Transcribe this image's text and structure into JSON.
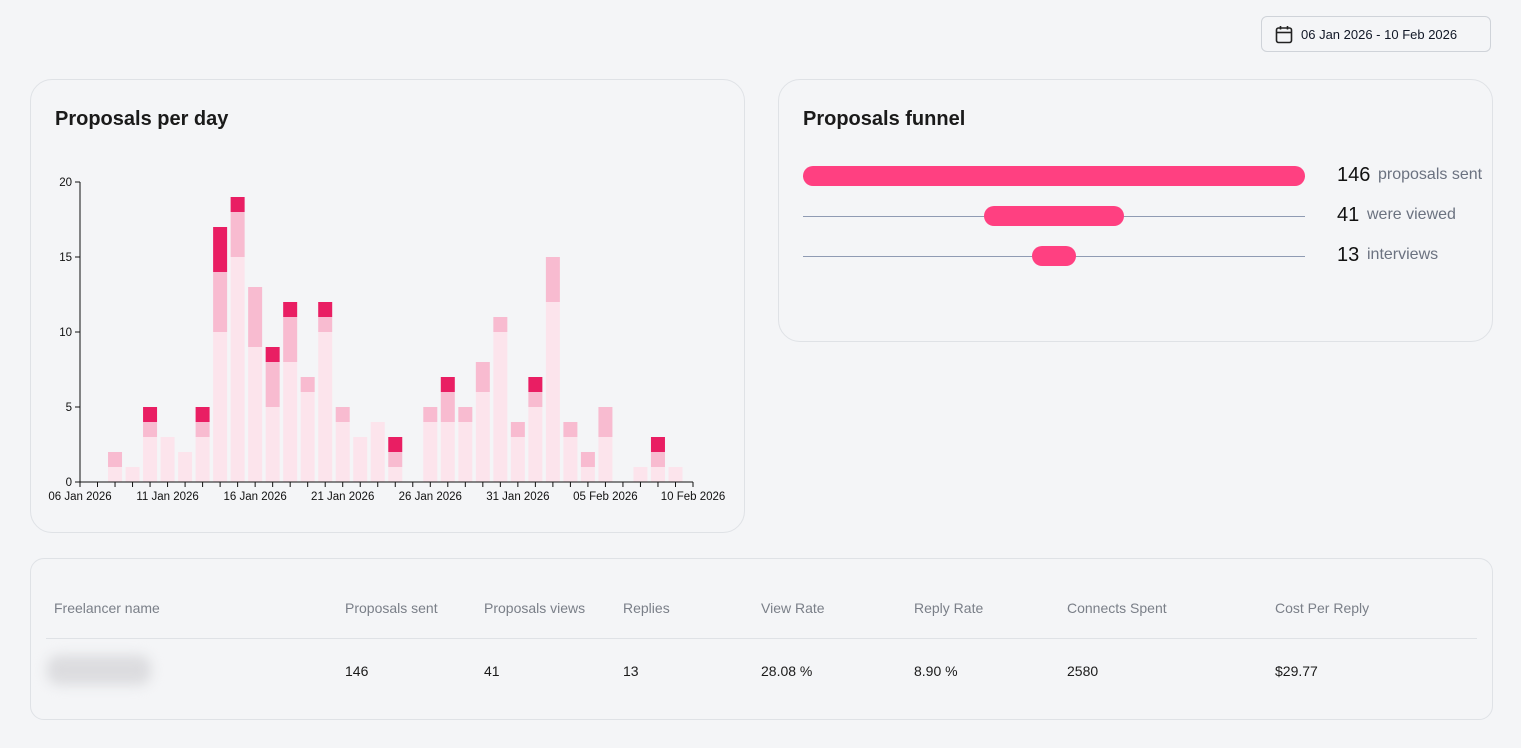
{
  "date_range": {
    "label": "06 Jan 2026 - 10 Feb 2026",
    "icon": "calendar-icon"
  },
  "chart_card": {
    "title": "Proposals per day"
  },
  "chart_data": {
    "type": "bar",
    "stacked": true,
    "title": "Proposals per day",
    "xlabel": "",
    "ylabel": "",
    "ylim": [
      0,
      20
    ],
    "y_ticks": [
      "0",
      "5",
      "10",
      "15",
      "20"
    ],
    "x_tick_labels": [
      "06 Jan 2026",
      "11 Jan 2026",
      "16 Jan 2026",
      "21 Jan 2026",
      "26 Jan 2026",
      "31 Jan 2026",
      "05 Feb 2026",
      "10 Feb 2026"
    ],
    "categories": [
      "06 Jan 2026",
      "07 Jan 2026",
      "08 Jan 2026",
      "09 Jan 2026",
      "10 Jan 2026",
      "11 Jan 2026",
      "12 Jan 2026",
      "13 Jan 2026",
      "14 Jan 2026",
      "15 Jan 2026",
      "16 Jan 2026",
      "17 Jan 2026",
      "18 Jan 2026",
      "19 Jan 2026",
      "20 Jan 2026",
      "21 Jan 2026",
      "22 Jan 2026",
      "23 Jan 2026",
      "24 Jan 2026",
      "25 Jan 2026",
      "26 Jan 2026",
      "27 Jan 2026",
      "28 Jan 2026",
      "29 Jan 2026",
      "30 Jan 2026",
      "31 Jan 2026",
      "01 Feb 2026",
      "02 Feb 2026",
      "03 Feb 2026",
      "04 Feb 2026",
      "05 Feb 2026",
      "06 Feb 2026",
      "07 Feb 2026",
      "08 Feb 2026",
      "09 Feb 2026",
      "10 Feb 2026"
    ],
    "series": [
      {
        "color": "#fce4ec",
        "values": [
          0,
          0,
          1,
          1,
          3,
          3,
          2,
          3,
          10,
          15,
          9,
          5,
          8,
          6,
          10,
          4,
          3,
          4,
          1,
          0,
          4,
          4,
          4,
          6,
          10,
          3,
          5,
          12,
          3,
          1,
          3,
          0,
          1,
          1,
          1,
          0
        ]
      },
      {
        "color": "#f8bbd0",
        "values": [
          0,
          0,
          1,
          0,
          1,
          0,
          0,
          1,
          4,
          3,
          4,
          3,
          3,
          1,
          1,
          1,
          0,
          0,
          1,
          0,
          1,
          2,
          1,
          2,
          1,
          1,
          1,
          3,
          1,
          1,
          2,
          0,
          0,
          1,
          0,
          0
        ]
      },
      {
        "color": "#e91e63",
        "values": [
          0,
          0,
          0,
          0,
          1,
          0,
          0,
          1,
          3,
          1,
          0,
          1,
          1,
          0,
          1,
          0,
          0,
          0,
          1,
          0,
          0,
          1,
          0,
          0,
          0,
          0,
          1,
          0,
          0,
          0,
          0,
          0,
          0,
          1,
          0,
          0
        ]
      }
    ]
  },
  "funnel_card": {
    "title": "Proposals funnel",
    "color": "#ff4081",
    "rows": [
      {
        "value": "146",
        "label": "proposals sent",
        "fraction": 1.0
      },
      {
        "value": "41",
        "label": "were viewed",
        "fraction": 0.28
      },
      {
        "value": "13",
        "label": "interviews",
        "fraction": 0.089
      }
    ]
  },
  "table": {
    "headers": [
      "Freelancer name",
      "Proposals sent",
      "Proposals views",
      "Replies",
      "View Rate",
      "Reply Rate",
      "Connects Spent",
      "Cost Per Reply"
    ],
    "rows": [
      {
        "proposals_sent": "146",
        "proposals_views": "41",
        "replies": "13",
        "view_rate": "28.08 %",
        "reply_rate": "8.90 %",
        "connects_spent": "2580",
        "cost_per_reply": "$29.77"
      }
    ]
  }
}
